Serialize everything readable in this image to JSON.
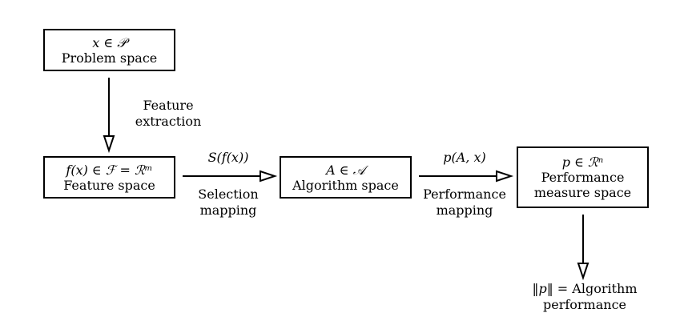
{
  "boxes": {
    "problem": {
      "math": "x ∈ 𝒫",
      "text": "Problem space"
    },
    "feature": {
      "math": "f(x) ∈ ℱ = ℛᵐ",
      "text": "Feature space"
    },
    "algorithm": {
      "math": "A ∈ 𝒜",
      "text": "Algorithm space"
    },
    "performance": {
      "math": "p ∈ ℛⁿ",
      "text_line1": "Performance",
      "text_line2": "measure space"
    }
  },
  "edges": {
    "feature_extraction": {
      "line1": "Feature",
      "line2": "extraction"
    },
    "selection": {
      "math": "S(f(x))",
      "line1": "Selection",
      "line2": "mapping"
    },
    "performance_mapping": {
      "math": "p(A, x)",
      "line1": "Performance",
      "line2": "mapping"
    }
  },
  "output": {
    "math": "‖p‖ = ",
    "text": "Algorithm",
    "line2": "performance"
  }
}
